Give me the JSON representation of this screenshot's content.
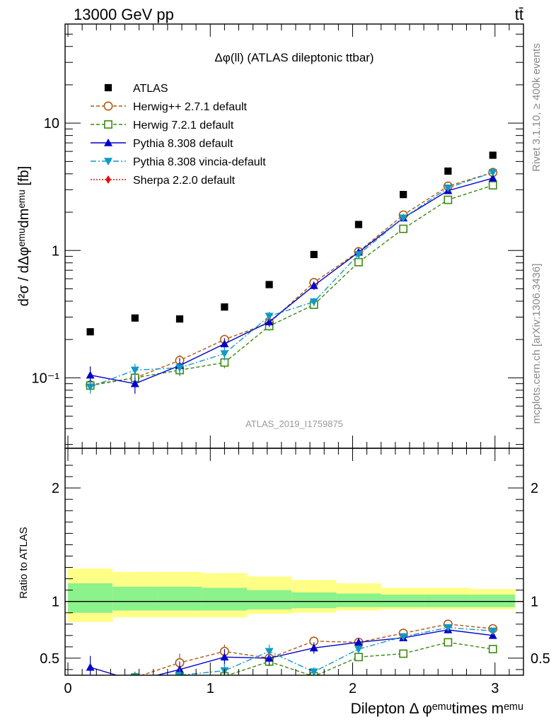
{
  "chart_data": {
    "type": "scatter",
    "header_left": "13000 GeV pp",
    "header_right": "tt̄",
    "title": "Δφ(ll) (ATLAS dileptonic ttbar)",
    "watermark": "ATLAS_2019_I1759875",
    "side_label_top": "Rivet 3.1.10, ≥ 400k events",
    "side_label_bottom": "mcplots.cern.ch [arXiv:1306.3436]",
    "ylabel_main": "d²σ / dΔφᵉᵐᵘdmᵉᵐᵘ [fb]",
    "ylabel_ratio": "Ratio to ATLAS",
    "xlabel": "Dilepton Δ φᵉᵐᵘtimes mᵉᵐᵘ",
    "x_ticks": [
      "0",
      "1",
      "2",
      "3"
    ],
    "y_ticks_main": [
      "10⁻¹",
      "1",
      "10"
    ],
    "y_ticks_ratio": [
      "0.5",
      "1",
      "2"
    ],
    "xlim": [
      -0.02,
      3.2
    ],
    "ylim_main": [
      0.028,
      60
    ],
    "yscale_main": "log",
    "ylim_ratio": [
      0.35,
      2.35
    ],
    "x": [
      0.157,
      0.471,
      0.785,
      1.1,
      1.414,
      1.728,
      2.042,
      2.356,
      2.67,
      2.985
    ],
    "data": {
      "name": "ATLAS",
      "values": [
        0.23,
        0.295,
        0.29,
        0.36,
        0.54,
        0.93,
        1.6,
        2.75,
        4.2,
        5.6
      ]
    },
    "bands": {
      "edges": [
        0.0,
        0.314,
        0.628,
        0.942,
        1.257,
        1.571,
        1.885,
        2.199,
        2.513,
        2.827,
        3.14
      ],
      "inner": [
        [
          0.9,
          1.16
        ],
        [
          0.92,
          1.13
        ],
        [
          0.92,
          1.13
        ],
        [
          0.92,
          1.12
        ],
        [
          0.93,
          1.1
        ],
        [
          0.94,
          1.08
        ],
        [
          0.95,
          1.07
        ],
        [
          0.95,
          1.06
        ],
        [
          0.95,
          1.06
        ],
        [
          0.95,
          1.06
        ]
      ],
      "outer": [
        [
          0.82,
          1.29
        ],
        [
          0.86,
          1.26
        ],
        [
          0.86,
          1.26
        ],
        [
          0.86,
          1.25
        ],
        [
          0.89,
          1.22
        ],
        [
          0.9,
          1.19
        ],
        [
          0.92,
          1.16
        ],
        [
          0.93,
          1.12
        ],
        [
          0.93,
          1.12
        ],
        [
          0.93,
          1.11
        ]
      ]
    },
    "series": [
      {
        "name": "Herwig++ 2.7.1 default",
        "color": "#b05a10",
        "marker": "circle-open",
        "dash": "5,3",
        "values": [
          0.088,
          0.1,
          0.137,
          0.2,
          0.27,
          0.56,
          0.98,
          1.9,
          3.2,
          4.1
        ],
        "err": [
          0.008,
          0.01,
          0.014,
          0.018,
          0.02,
          0.03,
          0.04,
          0.05,
          0.06,
          0.08
        ],
        "ratio": [
          0.3,
          0.33,
          0.46,
          0.56,
          0.5,
          0.65,
          0.64,
          0.72,
          0.8,
          0.76
        ],
        "ratio_err": [
          0.05,
          0.05,
          0.08,
          0.06,
          0.05,
          0.04,
          0.03,
          0.02,
          0.02,
          0.02
        ]
      },
      {
        "name": "Herwig 7.2.1 default",
        "color": "#3a8a10",
        "marker": "square-open",
        "dash": "5,3",
        "values": [
          0.087,
          0.1,
          0.115,
          0.132,
          0.255,
          0.375,
          0.81,
          1.48,
          2.5,
          3.25
        ],
        "err": [
          0.008,
          0.01,
          0.012,
          0.013,
          0.02,
          0.025,
          0.035,
          0.045,
          0.06,
          0.07
        ],
        "ratio": [
          0.3,
          0.33,
          0.34,
          0.34,
          0.47,
          0.34,
          0.51,
          0.54,
          0.64,
          0.58
        ],
        "ratio_err": [
          0.05,
          0.05,
          0.05,
          0.05,
          0.04,
          0.03,
          0.025,
          0.015,
          0.015,
          0.015
        ]
      },
      {
        "name": "Pythia 8.308 default",
        "color": "#0000cc",
        "marker": "triangle-up",
        "dash": "",
        "values": [
          0.105,
          0.09,
          0.125,
          0.185,
          0.275,
          0.53,
          0.97,
          1.8,
          2.95,
          3.7
        ],
        "err": [
          0.018,
          0.015,
          0.018,
          0.02,
          0.025,
          0.04,
          0.05,
          0.06,
          0.08,
          0.1
        ],
        "ratio": [
          0.42,
          0.3,
          0.4,
          0.51,
          0.5,
          0.59,
          0.64,
          0.68,
          0.75,
          0.7
        ],
        "ratio_err": [
          0.1,
          0.05,
          0.07,
          0.07,
          0.06,
          0.05,
          0.04,
          0.025,
          0.02,
          0.02
        ]
      },
      {
        "name": "Pythia 8.308 vincia-default",
        "color": "#1199c4",
        "marker": "triangle-down",
        "dash": "8,3,2,3",
        "values": [
          0.085,
          0.115,
          0.12,
          0.155,
          0.305,
          0.395,
          0.93,
          1.8,
          3.1,
          4.1
        ],
        "err": [
          0.01,
          0.014,
          0.015,
          0.018,
          0.025,
          0.03,
          0.045,
          0.06,
          0.08,
          0.1
        ],
        "ratio": [
          0.3,
          0.33,
          0.35,
          0.39,
          0.56,
          0.38,
          0.58,
          0.69,
          0.77,
          0.74
        ],
        "ratio_err": [
          0.05,
          0.05,
          0.06,
          0.06,
          0.06,
          0.04,
          0.03,
          0.025,
          0.02,
          0.02
        ]
      },
      {
        "name": "Sherpa 2.2.0 default",
        "color": "#dd1111",
        "marker": "diamond",
        "dash": "2,2",
        "values": [],
        "err": [],
        "ratio": [],
        "ratio_err": []
      }
    ]
  }
}
